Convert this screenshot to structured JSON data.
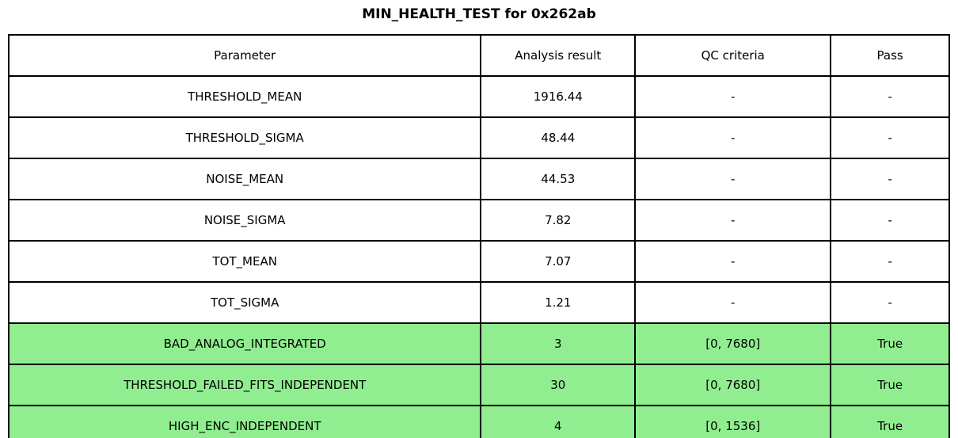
{
  "title": "MIN_HEALTH_TEST for 0x262ab",
  "colors": {
    "pass_highlight": "#90EE90",
    "border": "#000000",
    "background": "#ffffff",
    "text": "#000000"
  },
  "table": {
    "columns": [
      "Parameter",
      "Analysis result",
      "QC criteria",
      "Pass"
    ],
    "rows": [
      {
        "parameter": "THRESHOLD_MEAN",
        "result": "1916.44",
        "qc": "-",
        "pass": "-",
        "highlighted": false
      },
      {
        "parameter": "THRESHOLD_SIGMA",
        "result": "48.44",
        "qc": "-",
        "pass": "-",
        "highlighted": false
      },
      {
        "parameter": "NOISE_MEAN",
        "result": "44.53",
        "qc": "-",
        "pass": "-",
        "highlighted": false
      },
      {
        "parameter": "NOISE_SIGMA",
        "result": "7.82",
        "qc": "-",
        "pass": "-",
        "highlighted": false
      },
      {
        "parameter": "TOT_MEAN",
        "result": "7.07",
        "qc": "-",
        "pass": "-",
        "highlighted": false
      },
      {
        "parameter": "TOT_SIGMA",
        "result": "1.21",
        "qc": "-",
        "pass": "-",
        "highlighted": false
      },
      {
        "parameter": "BAD_ANALOG_INTEGRATED",
        "result": "3",
        "qc": "[0, 7680]",
        "pass": "True",
        "highlighted": true
      },
      {
        "parameter": "THRESHOLD_FAILED_FITS_INDEPENDENT",
        "result": "30",
        "qc": "[0, 7680]",
        "pass": "True",
        "highlighted": true
      },
      {
        "parameter": "HIGH_ENC_INDEPENDENT",
        "result": "4",
        "qc": "[0, 1536]",
        "pass": "True",
        "highlighted": true
      }
    ]
  },
  "chart_data": {
    "type": "table",
    "title": "MIN_HEALTH_TEST for 0x262ab",
    "columns": [
      "Parameter",
      "Analysis result",
      "QC criteria",
      "Pass"
    ],
    "rows": [
      [
        "THRESHOLD_MEAN",
        "1916.44",
        "-",
        "-"
      ],
      [
        "THRESHOLD_SIGMA",
        "48.44",
        "-",
        "-"
      ],
      [
        "NOISE_MEAN",
        "44.53",
        "-",
        "-"
      ],
      [
        "NOISE_SIGMA",
        "7.82",
        "-",
        "-"
      ],
      [
        "TOT_MEAN",
        "7.07",
        "-",
        "-"
      ],
      [
        "TOT_SIGMA",
        "1.21",
        "-",
        "-"
      ],
      [
        "BAD_ANALOG_INTEGRATED",
        "3",
        "[0, 7680]",
        "True"
      ],
      [
        "THRESHOLD_FAILED_FITS_INDEPENDENT",
        "30",
        "[0, 7680]",
        "True"
      ],
      [
        "HIGH_ENC_INDEPENDENT",
        "4",
        "[0, 1536]",
        "True"
      ]
    ],
    "highlighted_rows": [
      6,
      7,
      8
    ],
    "highlight_color": "#90EE90",
    "layout": {
      "title_position": "top-center",
      "grid": "all-cell-borders"
    }
  }
}
